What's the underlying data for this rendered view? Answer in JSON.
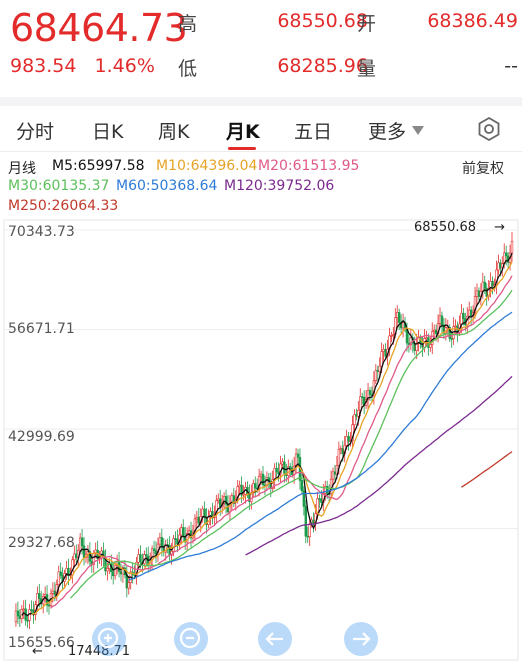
{
  "quote": {
    "price": "68464.73",
    "change": "983.54",
    "change_pct": "1.46%",
    "high_label": "高",
    "high": "68550.68",
    "open_label": "开",
    "open": "68386.49",
    "low_label": "低",
    "low": "68285.96",
    "volume_label": "量",
    "volume": "--"
  },
  "tabs": [
    {
      "label": "分时"
    },
    {
      "label": "日K"
    },
    {
      "label": "周K"
    },
    {
      "label": "月K"
    },
    {
      "label": "五日"
    },
    {
      "label": "更多"
    }
  ],
  "active_tab": "月K",
  "legend": {
    "period": "月线",
    "ma5": "M5:65997.58",
    "ma10": "M10:64396.04",
    "ma20": "M20:61513.95",
    "ma30": "M30:60135.37",
    "ma60": "M60:50368.64",
    "ma120": "M120:39752.06",
    "ma250": "M250:26064.33",
    "adjust": "前复权"
  },
  "colors": {
    "up": "#e32b2b",
    "ma5": "#111111",
    "ma10": "#e6a325",
    "ma20": "#e05a8a",
    "ma30": "#5cc05c",
    "ma60": "#2e7bd6",
    "ma120": "#7b2a8f",
    "ma250": "#c0392b"
  },
  "chart_data": {
    "type": "candlestick",
    "y_ticks": [
      "70343.73",
      "56671.71",
      "42999.69",
      "29327.68",
      "15655.66"
    ],
    "ylim": [
      15655.66,
      70343.73
    ],
    "max_label": "68550.68",
    "min_label": "17448.71"
  },
  "icons": [
    "settings-icon",
    "zoom-in-icon",
    "zoom-out-icon",
    "scroll-left-icon",
    "scroll-right-icon"
  ]
}
